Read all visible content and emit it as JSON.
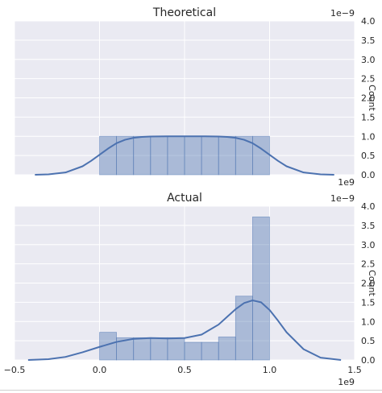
{
  "colors": {
    "panel_bg": "#eaeaf2",
    "grid": "#ffffff",
    "bar_fill": "#4c72b0",
    "kde_line": "#4c72b0",
    "text": "#262626"
  },
  "chart_data": [
    {
      "type": "bar",
      "title": "Theoretical",
      "ylabel": "Count",
      "xlim": [
        -0.5,
        1.5
      ],
      "ylim": [
        0,
        4.0
      ],
      "x_ticks": [
        -0.5,
        0.0,
        0.5,
        1.0,
        1.5
      ],
      "x_tick_labels": [],
      "y_ticks": [
        0.0,
        0.5,
        1.0,
        1.5,
        2.0,
        2.5,
        3.0,
        3.5,
        4.0
      ],
      "y_tick_labels": [
        "0.0",
        "0.5",
        "1.0",
        "1.5",
        "2.0",
        "2.5",
        "3.0",
        "3.5",
        "4.0"
      ],
      "x_offset_label": "1e9",
      "y_offset_label": "1e−9",
      "grid": true,
      "bin_edges": [
        0.0,
        0.1,
        0.2,
        0.3,
        0.4,
        0.5,
        0.6,
        0.7,
        0.8,
        0.9,
        1.0
      ],
      "bar_values": [
        1.0,
        1.0,
        1.0,
        1.0,
        1.0,
        1.0,
        1.0,
        1.0,
        1.0,
        1.0
      ],
      "kde_x": [
        -0.38,
        -0.3,
        -0.2,
        -0.1,
        -0.05,
        0.0,
        0.05,
        0.1,
        0.15,
        0.2,
        0.25,
        0.3,
        0.4,
        0.5,
        0.6,
        0.7,
        0.75,
        0.8,
        0.85,
        0.9,
        0.95,
        1.0,
        1.05,
        1.1,
        1.2,
        1.3,
        1.38
      ],
      "kde_y": [
        0.0,
        0.01,
        0.06,
        0.22,
        0.36,
        0.52,
        0.68,
        0.82,
        0.91,
        0.96,
        0.985,
        0.995,
        1.0,
        1.0,
        1.0,
        0.995,
        0.985,
        0.96,
        0.91,
        0.82,
        0.68,
        0.52,
        0.36,
        0.22,
        0.06,
        0.01,
        0.0
      ]
    },
    {
      "type": "bar",
      "title": "Actual",
      "ylabel": "Count",
      "xlim": [
        -0.5,
        1.5
      ],
      "ylim": [
        0,
        4.0
      ],
      "x_ticks": [
        -0.5,
        0.0,
        0.5,
        1.0,
        1.5
      ],
      "x_tick_labels": [
        "−0.5",
        "0.0",
        "0.5",
        "1.0",
        "1.5"
      ],
      "y_ticks": [
        0.0,
        0.5,
        1.0,
        1.5,
        2.0,
        2.5,
        3.0,
        3.5,
        4.0
      ],
      "y_tick_labels": [
        "0.0",
        "0.5",
        "1.0",
        "1.5",
        "2.0",
        "2.5",
        "3.0",
        "3.5",
        "4.0"
      ],
      "x_offset_label": "1e9",
      "y_offset_label": "1e−9",
      "grid": true,
      "bin_edges": [
        0.0,
        0.1,
        0.2,
        0.3,
        0.4,
        0.5,
        0.6,
        0.7,
        0.8,
        0.9,
        1.0
      ],
      "bar_values": [
        0.72,
        0.58,
        0.58,
        0.58,
        0.58,
        0.46,
        0.46,
        0.6,
        1.66,
        3.72
      ],
      "kde_x": [
        -0.42,
        -0.3,
        -0.2,
        -0.1,
        0.0,
        0.1,
        0.2,
        0.3,
        0.4,
        0.5,
        0.6,
        0.7,
        0.75,
        0.8,
        0.85,
        0.9,
        0.95,
        1.0,
        1.05,
        1.1,
        1.2,
        1.3,
        1.42
      ],
      "kde_y": [
        0.0,
        0.02,
        0.08,
        0.2,
        0.34,
        0.47,
        0.55,
        0.57,
        0.56,
        0.57,
        0.66,
        0.92,
        1.12,
        1.32,
        1.48,
        1.55,
        1.5,
        1.3,
        1.02,
        0.72,
        0.28,
        0.06,
        0.0
      ]
    }
  ]
}
